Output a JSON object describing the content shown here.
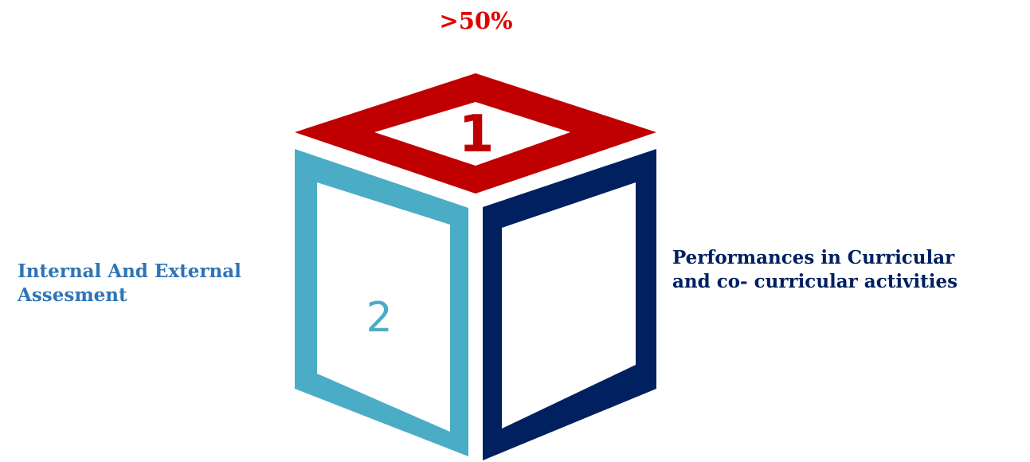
{
  "top_label": ">50%",
  "left_label_lines": [
    "Internal And External",
    "Assesment"
  ],
  "right_label_lines": [
    "Performances in Curricular",
    "and co- curricular activities"
  ],
  "cube": {
    "top_face_number": "1",
    "left_face_number": "2",
    "right_face_number": ""
  },
  "colors": {
    "top": "#c00000",
    "left": "#4bacc6",
    "right": "#002060",
    "left_label": "#2e75b6",
    "right_label": "#002060",
    "top_label": "#e00000"
  }
}
